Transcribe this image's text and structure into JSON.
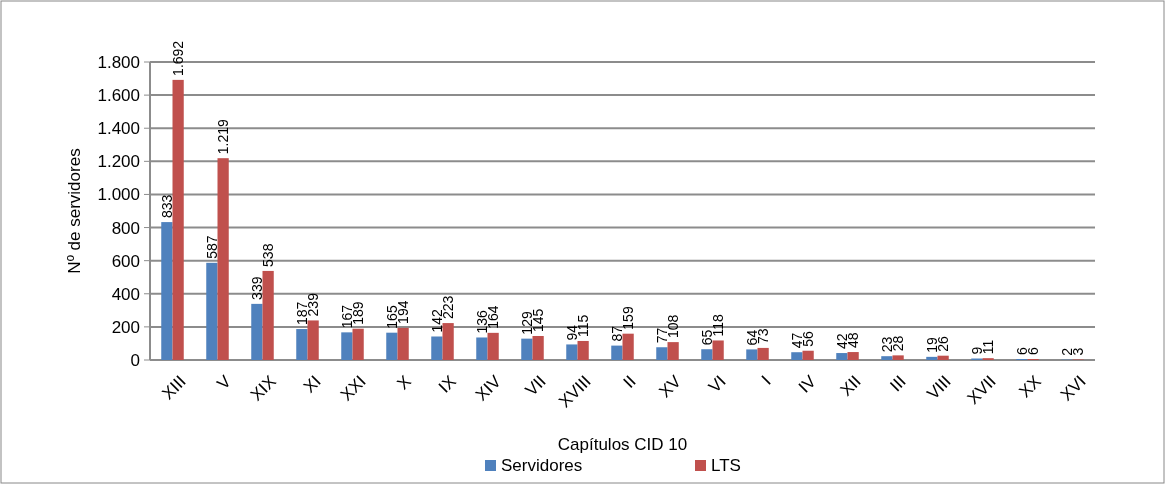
{
  "chart_data": {
    "type": "bar",
    "xlabel": "Capítulos CID 10",
    "ylabel": "Nº de servidores",
    "categories": [
      "XIII",
      "V",
      "XIX",
      "XI",
      "XXI",
      "X",
      "IX",
      "XIV",
      "VII",
      "XVIII",
      "II",
      "XV",
      "VI",
      "I",
      "IV",
      "XII",
      "III",
      "VIII",
      "XVII",
      "XX",
      "XVI"
    ],
    "series": [
      {
        "name": "Servidores",
        "color": "#4f81bd",
        "values": [
          833,
          587,
          339,
          187,
          167,
          165,
          142,
          136,
          129,
          94,
          87,
          77,
          65,
          64,
          47,
          42,
          23,
          19,
          9,
          6,
          2
        ]
      },
      {
        "name": "LTS",
        "color": "#c0504d",
        "values": [
          1692,
          1219,
          538,
          239,
          189,
          194,
          223,
          164,
          145,
          115,
          159,
          108,
          118,
          73,
          56,
          48,
          28,
          26,
          11,
          6,
          3
        ],
        "value_labels": [
          "1.692",
          "1.219",
          "538",
          "239",
          "189",
          "194",
          "223",
          "164",
          "145",
          "115",
          "159",
          "108",
          "118",
          "73",
          "56",
          "48",
          "28",
          "26",
          "11",
          "6",
          "3"
        ]
      }
    ],
    "data_labels": true,
    "ylim": [
      0,
      1800
    ],
    "yticks": [
      0,
      200,
      400,
      600,
      800,
      {
        "value": 1000,
        "label": "1.000"
      },
      {
        "value": 1200,
        "label": "1.200"
      },
      {
        "value": 1400,
        "label": "1.400"
      },
      {
        "value": 1600,
        "label": "1.600"
      },
      {
        "value": 1800,
        "label": "1.800"
      }
    ],
    "grid": "y",
    "legend": "bottom"
  }
}
